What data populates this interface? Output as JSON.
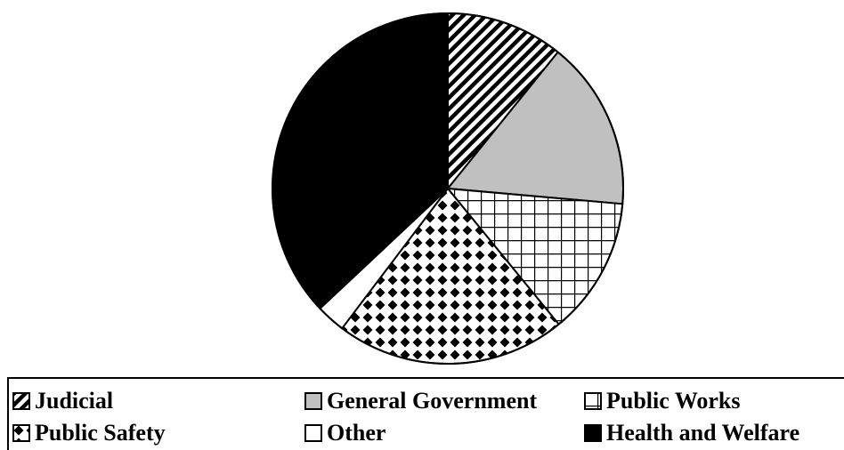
{
  "chart_data": {
    "type": "pie",
    "start_angle_deg": 0,
    "direction": "clockwise",
    "slices": [
      {
        "label": "Judicial",
        "value": 10.8,
        "pattern": "diagonal-stripes"
      },
      {
        "label": "General Government",
        "value": 15.6,
        "pattern": "solid-gray"
      },
      {
        "label": "Public Works",
        "value": 12.7,
        "pattern": "grid"
      },
      {
        "label": "Public Safety",
        "value": 21.2,
        "pattern": "diamond-checker"
      },
      {
        "label": "Other",
        "value": 2.7,
        "pattern": "white"
      },
      {
        "label": "Health and Welfare",
        "value": 37.0,
        "pattern": "solid-black"
      }
    ],
    "legend": {
      "placement": "bottom",
      "entries": [
        "Judicial",
        "General Government",
        "Public Works",
        "Public Safety",
        "Other",
        "Health and Welfare"
      ]
    },
    "title": ""
  },
  "colors": {
    "outline": "#000000",
    "gray": "#c0c0c0",
    "black": "#000000",
    "white": "#ffffff"
  }
}
